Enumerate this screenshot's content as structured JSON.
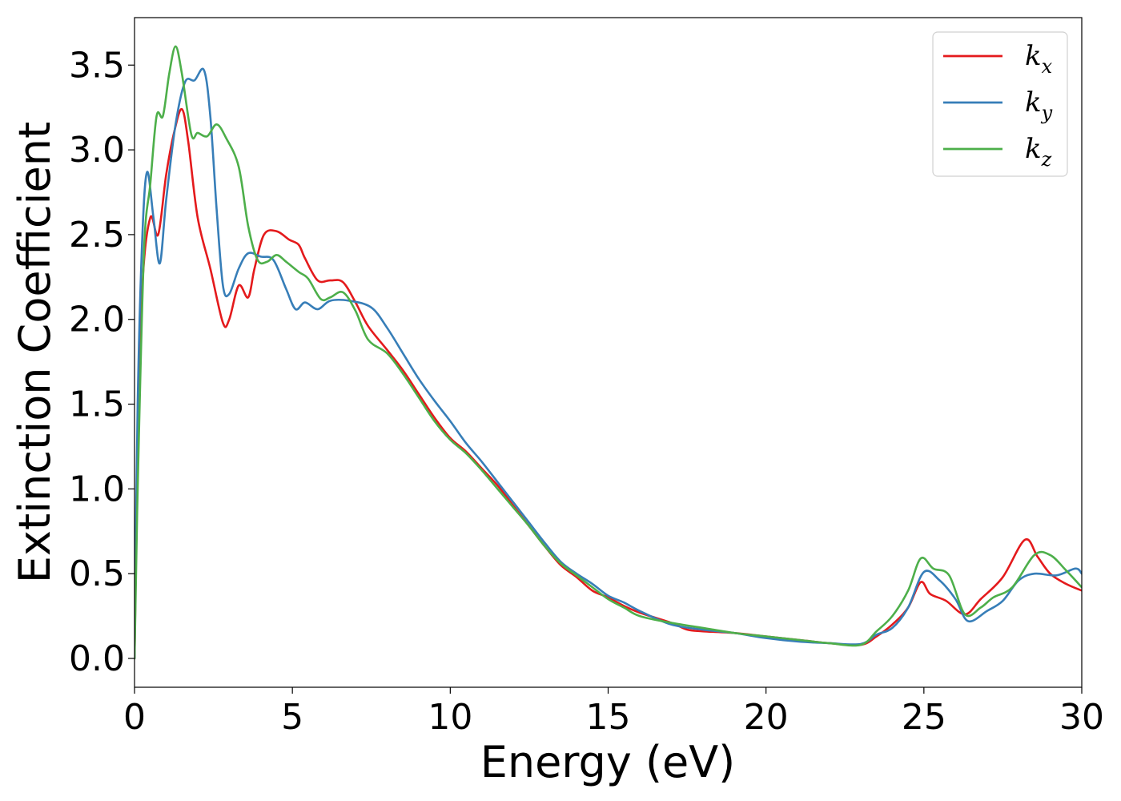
{
  "chart_data": {
    "type": "line",
    "title": "",
    "xlabel": "Energy (eV)",
    "ylabel": "Extinction Coefficient",
    "xlim": [
      0,
      30
    ],
    "ylim": [
      -0.17,
      3.78
    ],
    "xticks": [
      0,
      5,
      10,
      15,
      20,
      25,
      30
    ],
    "xtick_labels": [
      "0",
      "5",
      "10",
      "15",
      "20",
      "25",
      "30"
    ],
    "yticks": [
      0.0,
      0.5,
      1.0,
      1.5,
      2.0,
      2.5,
      3.0,
      3.5
    ],
    "ytick_labels": [
      "0.0",
      "0.5",
      "1.0",
      "1.5",
      "2.0",
      "2.5",
      "3.0",
      "3.5"
    ],
    "grid": false,
    "legend_position": "top-right",
    "series": [
      {
        "name": "k",
        "subscript": "x",
        "color": "#e41a1c",
        "points": [
          [
            0,
            0
          ],
          [
            0.1,
            1.2
          ],
          [
            0.25,
            2.2
          ],
          [
            0.5,
            2.6
          ],
          [
            0.75,
            2.5
          ],
          [
            1.0,
            2.85
          ],
          [
            1.25,
            3.1
          ],
          [
            1.5,
            3.24
          ],
          [
            1.7,
            3.05
          ],
          [
            2.0,
            2.6
          ],
          [
            2.4,
            2.3
          ],
          [
            2.8,
            1.98
          ],
          [
            3.0,
            2.0
          ],
          [
            3.3,
            2.2
          ],
          [
            3.6,
            2.13
          ],
          [
            3.8,
            2.3
          ],
          [
            4.1,
            2.5
          ],
          [
            4.5,
            2.52
          ],
          [
            4.9,
            2.47
          ],
          [
            5.2,
            2.44
          ],
          [
            5.4,
            2.36
          ],
          [
            5.8,
            2.23
          ],
          [
            6.2,
            2.23
          ],
          [
            6.6,
            2.22
          ],
          [
            7.0,
            2.1
          ],
          [
            7.4,
            1.96
          ],
          [
            8.0,
            1.82
          ],
          [
            8.5,
            1.7
          ],
          [
            9.0,
            1.56
          ],
          [
            9.5,
            1.42
          ],
          [
            10.0,
            1.3
          ],
          [
            10.5,
            1.22
          ],
          [
            11.0,
            1.12
          ],
          [
            11.5,
            1.02
          ],
          [
            12.0,
            0.9
          ],
          [
            12.5,
            0.78
          ],
          [
            13.0,
            0.66
          ],
          [
            13.5,
            0.55
          ],
          [
            14.0,
            0.48
          ],
          [
            14.5,
            0.4
          ],
          [
            15.0,
            0.36
          ],
          [
            15.5,
            0.31
          ],
          [
            16.0,
            0.27
          ],
          [
            17.0,
            0.21
          ],
          [
            17.5,
            0.17
          ],
          [
            18.0,
            0.16
          ],
          [
            19.0,
            0.15
          ],
          [
            20.0,
            0.13
          ],
          [
            21.0,
            0.11
          ],
          [
            22.0,
            0.09
          ],
          [
            23.0,
            0.08
          ],
          [
            23.5,
            0.13
          ],
          [
            24.0,
            0.2
          ],
          [
            24.5,
            0.3
          ],
          [
            24.9,
            0.45
          ],
          [
            25.2,
            0.38
          ],
          [
            25.7,
            0.34
          ],
          [
            26.3,
            0.26
          ],
          [
            26.8,
            0.35
          ],
          [
            27.5,
            0.48
          ],
          [
            28.2,
            0.7
          ],
          [
            28.6,
            0.6
          ],
          [
            29.0,
            0.5
          ],
          [
            29.5,
            0.44
          ],
          [
            30.0,
            0.4
          ]
        ]
      },
      {
        "name": "k",
        "subscript": "y",
        "color": "#377eb8",
        "points": [
          [
            0,
            0
          ],
          [
            0.1,
            1.5
          ],
          [
            0.25,
            2.5
          ],
          [
            0.4,
            2.87
          ],
          [
            0.6,
            2.6
          ],
          [
            0.8,
            2.33
          ],
          [
            1.0,
            2.7
          ],
          [
            1.3,
            3.15
          ],
          [
            1.6,
            3.4
          ],
          [
            1.9,
            3.41
          ],
          [
            2.2,
            3.47
          ],
          [
            2.4,
            3.2
          ],
          [
            2.6,
            2.65
          ],
          [
            2.8,
            2.2
          ],
          [
            3.0,
            2.15
          ],
          [
            3.3,
            2.3
          ],
          [
            3.6,
            2.39
          ],
          [
            4.0,
            2.37
          ],
          [
            4.4,
            2.35
          ],
          [
            4.8,
            2.18
          ],
          [
            5.1,
            2.06
          ],
          [
            5.4,
            2.1
          ],
          [
            5.8,
            2.06
          ],
          [
            6.2,
            2.11
          ],
          [
            6.8,
            2.11
          ],
          [
            7.5,
            2.07
          ],
          [
            8.0,
            1.95
          ],
          [
            8.5,
            1.8
          ],
          [
            9.0,
            1.65
          ],
          [
            9.5,
            1.52
          ],
          [
            10.0,
            1.4
          ],
          [
            10.5,
            1.27
          ],
          [
            11.0,
            1.16
          ],
          [
            11.5,
            1.04
          ],
          [
            12.0,
            0.92
          ],
          [
            12.5,
            0.8
          ],
          [
            13.0,
            0.68
          ],
          [
            13.5,
            0.57
          ],
          [
            14.0,
            0.5
          ],
          [
            14.5,
            0.44
          ],
          [
            15.0,
            0.37
          ],
          [
            15.5,
            0.33
          ],
          [
            16.0,
            0.28
          ],
          [
            17.0,
            0.2
          ],
          [
            18.0,
            0.17
          ],
          [
            19.0,
            0.15
          ],
          [
            20.0,
            0.12
          ],
          [
            21.0,
            0.1
          ],
          [
            22.0,
            0.09
          ],
          [
            23.0,
            0.085
          ],
          [
            23.5,
            0.14
          ],
          [
            24.0,
            0.18
          ],
          [
            24.5,
            0.3
          ],
          [
            25.0,
            0.51
          ],
          [
            25.5,
            0.46
          ],
          [
            26.0,
            0.35
          ],
          [
            26.4,
            0.22
          ],
          [
            27.0,
            0.28
          ],
          [
            27.5,
            0.34
          ],
          [
            28.0,
            0.46
          ],
          [
            28.5,
            0.5
          ],
          [
            29.2,
            0.49
          ],
          [
            29.8,
            0.53
          ],
          [
            30.0,
            0.5
          ]
        ]
      },
      {
        "name": "k",
        "subscript": "z",
        "color": "#4daf4a",
        "points": [
          [
            0,
            0
          ],
          [
            0.1,
            1.0
          ],
          [
            0.3,
            2.4
          ],
          [
            0.5,
            2.8
          ],
          [
            0.7,
            3.2
          ],
          [
            0.9,
            3.2
          ],
          [
            1.1,
            3.45
          ],
          [
            1.3,
            3.61
          ],
          [
            1.5,
            3.45
          ],
          [
            1.8,
            3.09
          ],
          [
            2.0,
            3.1
          ],
          [
            2.3,
            3.08
          ],
          [
            2.6,
            3.15
          ],
          [
            2.9,
            3.07
          ],
          [
            3.3,
            2.9
          ],
          [
            3.6,
            2.55
          ],
          [
            3.9,
            2.35
          ],
          [
            4.2,
            2.34
          ],
          [
            4.5,
            2.38
          ],
          [
            4.8,
            2.34
          ],
          [
            5.2,
            2.28
          ],
          [
            5.5,
            2.24
          ],
          [
            5.9,
            2.12
          ],
          [
            6.2,
            2.13
          ],
          [
            6.6,
            2.16
          ],
          [
            7.0,
            2.05
          ],
          [
            7.4,
            1.88
          ],
          [
            8.0,
            1.8
          ],
          [
            8.5,
            1.68
          ],
          [
            9.0,
            1.54
          ],
          [
            9.5,
            1.4
          ],
          [
            10.0,
            1.29
          ],
          [
            10.5,
            1.21
          ],
          [
            11.0,
            1.11
          ],
          [
            11.5,
            1.0
          ],
          [
            12.0,
            0.89
          ],
          [
            12.5,
            0.78
          ],
          [
            13.0,
            0.66
          ],
          [
            13.5,
            0.56
          ],
          [
            14.0,
            0.49
          ],
          [
            14.5,
            0.42
          ],
          [
            15.0,
            0.35
          ],
          [
            15.5,
            0.3
          ],
          [
            16.0,
            0.25
          ],
          [
            17.0,
            0.21
          ],
          [
            18.0,
            0.18
          ],
          [
            19.0,
            0.15
          ],
          [
            20.0,
            0.13
          ],
          [
            21.0,
            0.11
          ],
          [
            22.0,
            0.09
          ],
          [
            23.0,
            0.08
          ],
          [
            23.5,
            0.16
          ],
          [
            24.0,
            0.25
          ],
          [
            24.5,
            0.4
          ],
          [
            24.9,
            0.59
          ],
          [
            25.3,
            0.53
          ],
          [
            25.8,
            0.49
          ],
          [
            26.3,
            0.26
          ],
          [
            26.8,
            0.3
          ],
          [
            27.2,
            0.36
          ],
          [
            27.8,
            0.42
          ],
          [
            28.5,
            0.61
          ],
          [
            29.0,
            0.61
          ],
          [
            29.5,
            0.52
          ],
          [
            30.0,
            0.42
          ]
        ]
      }
    ]
  }
}
